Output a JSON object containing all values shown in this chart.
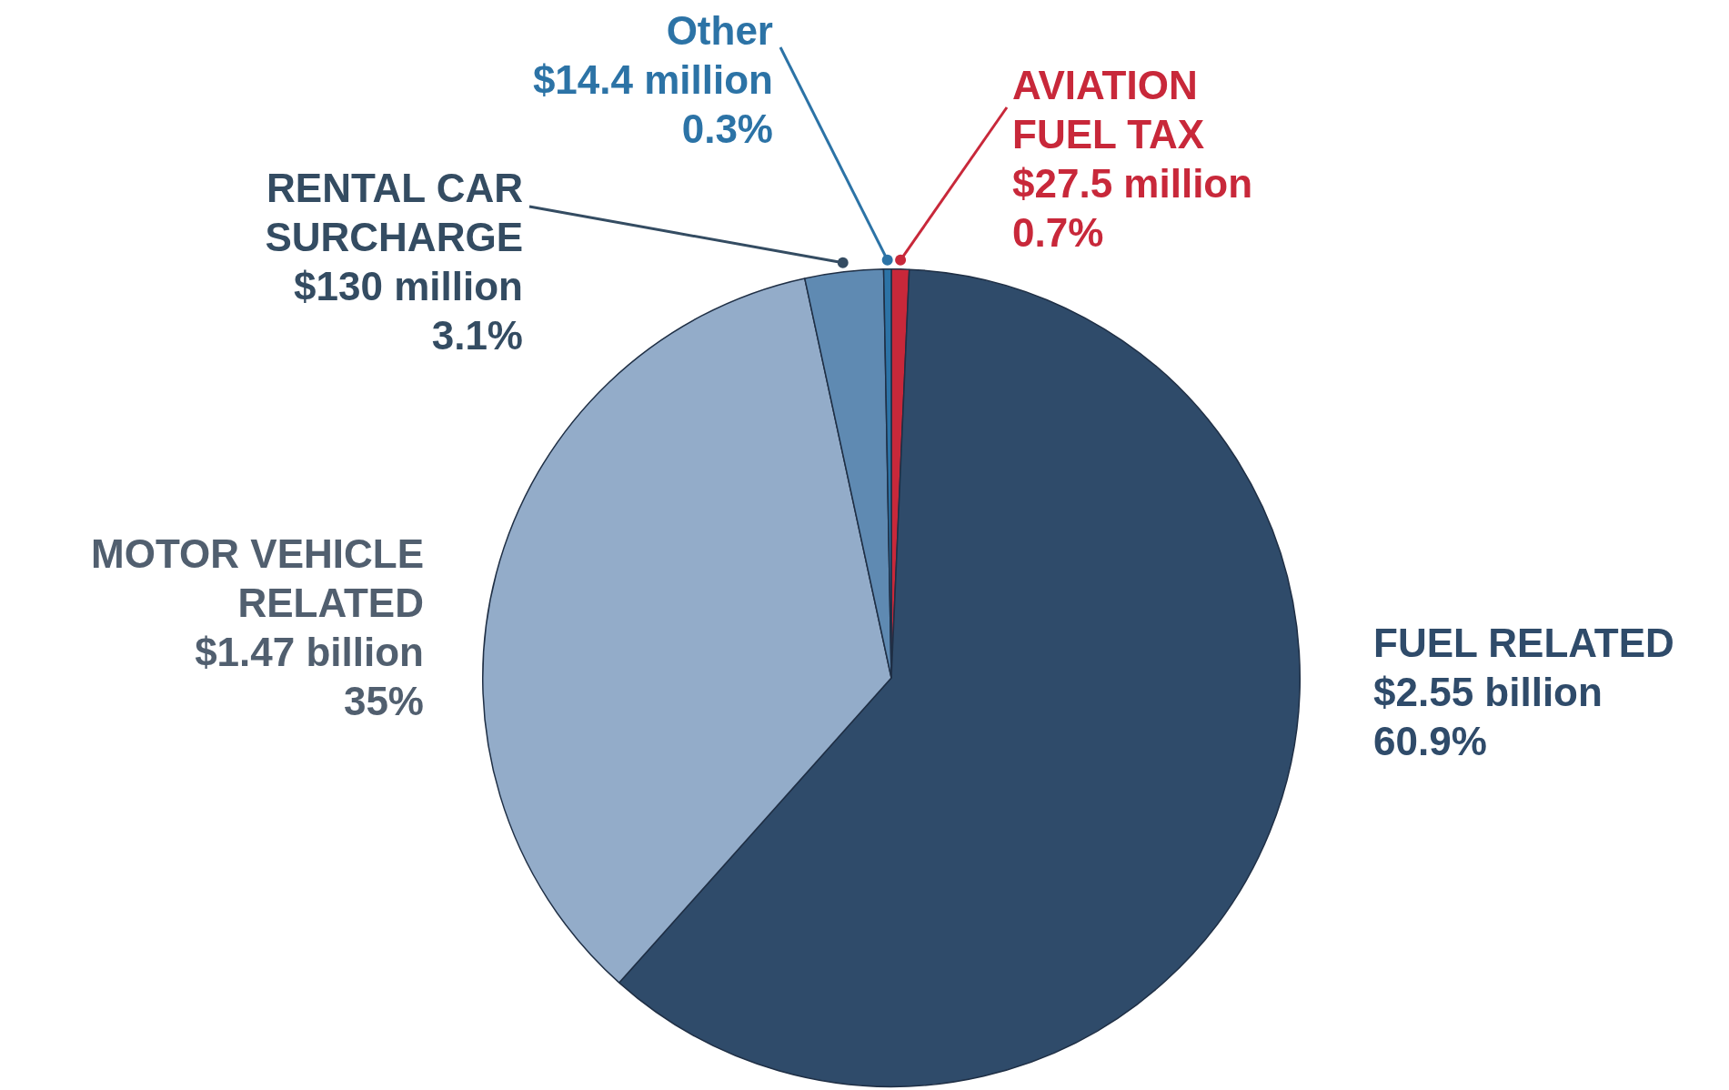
{
  "chart_data": {
    "type": "pie",
    "categories": [
      "AVIATION FUEL TAX",
      "FUEL RELATED",
      "MOTOR VEHICLE RELATED",
      "RENTAL CAR SURCHARGE",
      "Other"
    ],
    "values": [
      0.7,
      60.9,
      35,
      3.1,
      0.3
    ],
    "colors": [
      "#c8283a",
      "#2f4b6a",
      "#93acc9",
      "#5f8ab2",
      "#2c73a6"
    ],
    "value_labels": [
      "$27.5 million\n0.7%",
      "$2.55 billion\n60.9%",
      "$1.47 billion\n35%",
      "$130 million\n3.1%",
      "$14.4 million\n0.3%"
    ],
    "legend": false
  }
}
